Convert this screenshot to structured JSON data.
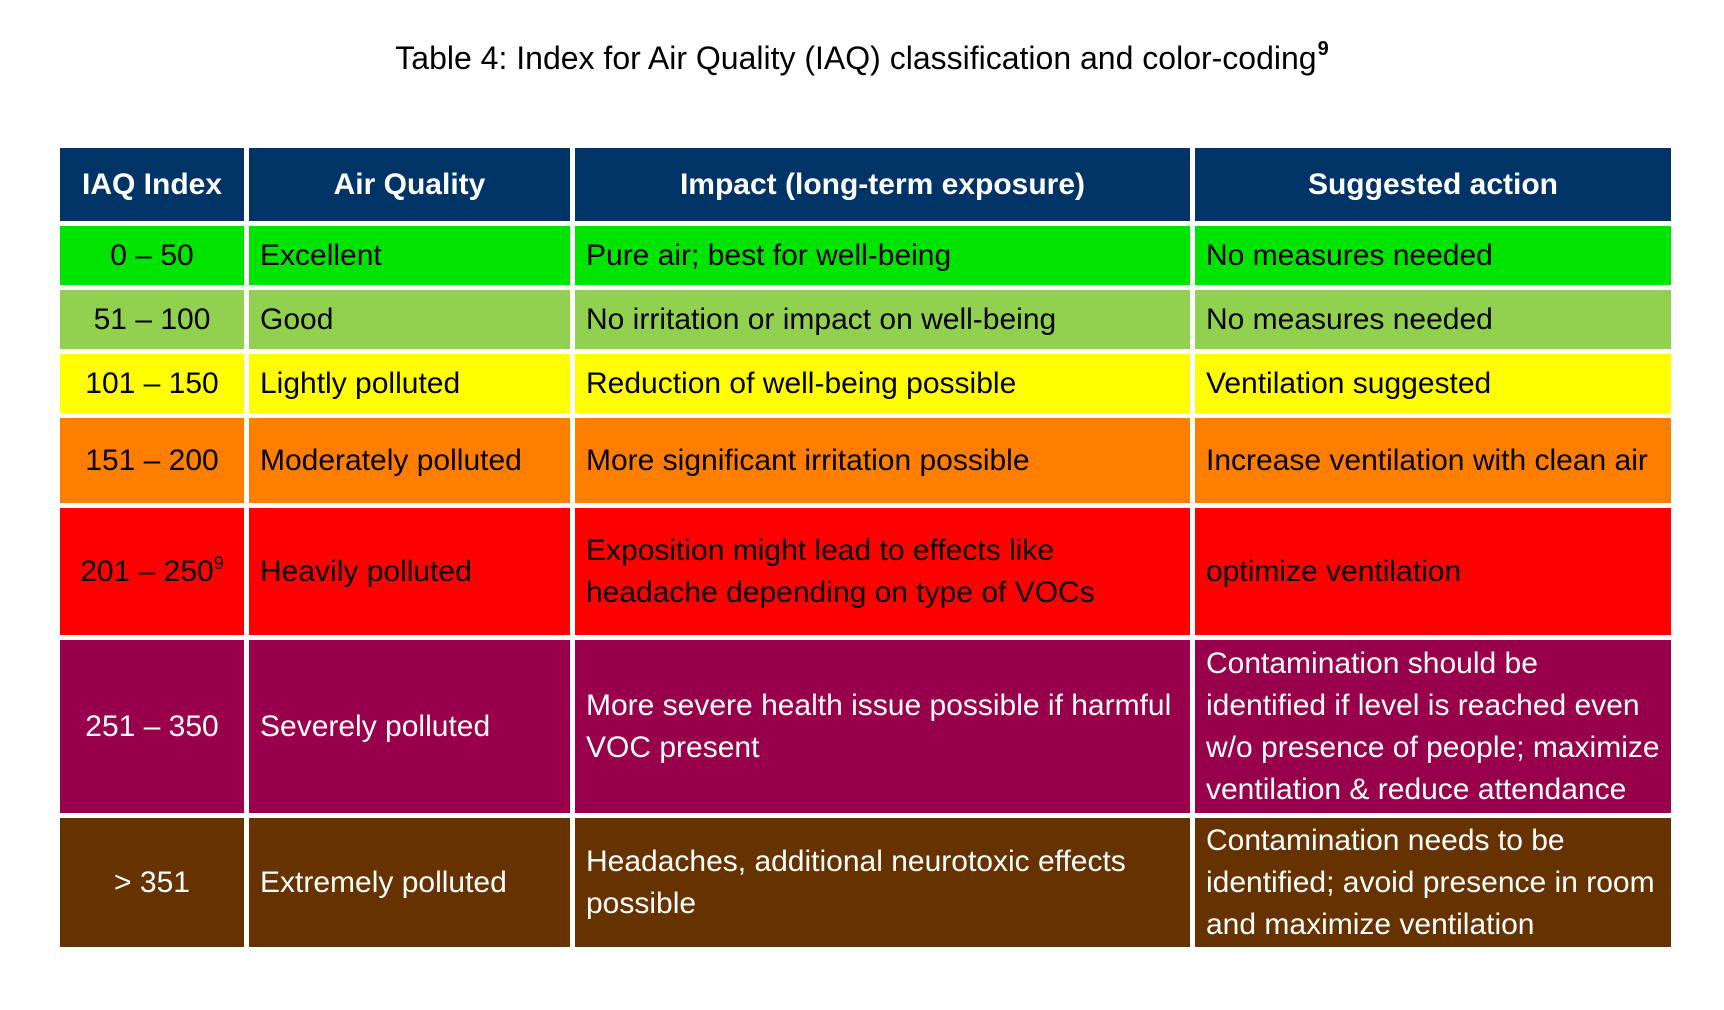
{
  "caption": {
    "text": "Table 4: Index for Air Quality (IAQ) classification and color-coding",
    "footnote": "9"
  },
  "table": {
    "header_bg": "#003366",
    "header_fg": "#FFFFFF",
    "headers": [
      "IAQ Index",
      "Air Quality",
      "Impact (long-term exposure)",
      "Suggested action"
    ],
    "rows": [
      {
        "index": "0 – 50",
        "index_note": "",
        "quality": "Excellent",
        "impact": "Pure air; best for well-being",
        "action": "No measures needed",
        "bg": "#00E400",
        "fg": "#000000",
        "height": 64
      },
      {
        "index": "51 – 100",
        "index_note": "",
        "quality": "Good",
        "impact": "No irritation or impact on well-being",
        "action": "No measures needed",
        "bg": "#92D050",
        "fg": "#000000",
        "height": 64
      },
      {
        "index": "101 – 150",
        "index_note": "",
        "quality": "Lightly polluted",
        "impact": "Reduction of well-being possible",
        "action": "Ventilation suggested",
        "bg": "#FFFF00",
        "fg": "#000000",
        "height": 64
      },
      {
        "index": "151 – 200",
        "index_note": "",
        "quality": "Moderately polluted",
        "impact": "More significant irritation possible",
        "action": "Increase ventilation with clean air",
        "bg": "#FF7E00",
        "fg": "#000000",
        "height": 90
      },
      {
        "index": "201 – 250",
        "index_note": "9",
        "quality": "Heavily polluted",
        "impact": "Exposition might lead to effects like headache depending on type of VOCs",
        "action": "optimize ventilation",
        "bg": "#FF0000",
        "fg": "#000000",
        "height": 132
      },
      {
        "index": "251 – 350",
        "index_note": "",
        "quality": "Severely polluted",
        "impact": "More severe health issue possible if harmful VOC present",
        "action": "Contamination should be identified if level is reached even w/o presence of people; maximize ventilation & reduce attendance",
        "bg": "#99004C",
        "fg": "#FFFFFF",
        "height": 178
      },
      {
        "index": "> 351",
        "index_note": "",
        "quality": "Extremely polluted",
        "impact": "Headaches, additional neurotoxic effects possible",
        "action": "Contamination needs to be identified; avoid presence in room and maximize ventilation",
        "bg": "#663300",
        "fg": "#FFFFFF",
        "height": 134
      }
    ]
  }
}
